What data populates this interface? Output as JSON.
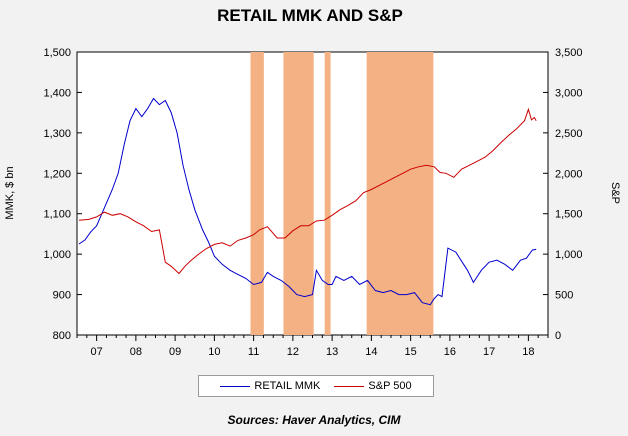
{
  "chart_data": {
    "type": "line",
    "title": "RETAIL MMK AND S&P",
    "ylabel_left": "MMK, $ bn",
    "ylabel_right": "S&P",
    "x_tick_labels": [
      "07",
      "08",
      "09",
      "10",
      "11",
      "12",
      "13",
      "14",
      "15",
      "16",
      "17",
      "18"
    ],
    "xlim": [
      2006.5,
      2018.5
    ],
    "ylim_left": [
      800,
      1500
    ],
    "ylim_right": [
      0,
      3500
    ],
    "left_ticks": [
      "800",
      "900",
      "1,000",
      "1,100",
      "1,200",
      "1,300",
      "1,400",
      "1,500"
    ],
    "right_ticks": [
      "0",
      "500",
      "1,000",
      "1,500",
      "2,000",
      "2,500",
      "3,000",
      "3,500"
    ],
    "shaded_periods": [
      [
        2010.92,
        2011.26
      ],
      [
        2011.76,
        2012.53
      ],
      [
        2012.81,
        2012.96
      ],
      [
        2013.88,
        2015.58
      ]
    ],
    "shade_color": "#f4b183",
    "series": [
      {
        "name": "RETAIL MMK",
        "axis": "left",
        "color": "#0000cc",
        "x": [
          2006.55,
          2006.7,
          2006.85,
          2007.0,
          2007.2,
          2007.4,
          2007.55,
          2007.7,
          2007.85,
          2008.0,
          2008.15,
          2008.3,
          2008.45,
          2008.6,
          2008.75,
          2008.9,
          2009.05,
          2009.2,
          2009.35,
          2009.5,
          2009.7,
          2009.85,
          2010.0,
          2010.2,
          2010.4,
          2010.6,
          2010.8,
          2011.0,
          2011.2,
          2011.35,
          2011.5,
          2011.7,
          2011.9,
          2012.1,
          2012.3,
          2012.5,
          2012.6,
          2012.75,
          2012.9,
          2013.0,
          2013.1,
          2013.3,
          2013.5,
          2013.7,
          2013.9,
          2014.1,
          2014.3,
          2014.5,
          2014.7,
          2014.9,
          2015.1,
          2015.3,
          2015.5,
          2015.6,
          2015.7,
          2015.8,
          2015.95,
          2016.15,
          2016.35,
          2016.45,
          2016.6,
          2016.8,
          2017.0,
          2017.2,
          2017.4,
          2017.6,
          2017.8,
          2017.95,
          2018.1,
          2018.2
        ],
        "y": [
          1025,
          1035,
          1055,
          1070,
          1115,
          1160,
          1200,
          1270,
          1330,
          1360,
          1340,
          1360,
          1385,
          1370,
          1380,
          1350,
          1300,
          1220,
          1160,
          1110,
          1060,
          1030,
          995,
          975,
          960,
          950,
          940,
          925,
          930,
          955,
          945,
          935,
          920,
          900,
          895,
          900,
          960,
          935,
          925,
          925,
          945,
          935,
          945,
          925,
          935,
          910,
          905,
          910,
          900,
          900,
          905,
          880,
          875,
          890,
          900,
          895,
          1015,
          1005,
          975,
          960,
          930,
          960,
          980,
          985,
          975,
          960,
          985,
          990,
          1010,
          1012
        ]
      },
      {
        "name": "S&P 500",
        "axis": "right",
        "color": "#cc0000",
        "x": [
          2006.55,
          2006.8,
          2007.0,
          2007.2,
          2007.4,
          2007.6,
          2007.8,
          2008.0,
          2008.2,
          2008.4,
          2008.6,
          2008.75,
          2008.9,
          2009.1,
          2009.25,
          2009.4,
          2009.6,
          2009.8,
          2010.0,
          2010.2,
          2010.4,
          2010.6,
          2010.8,
          2011.0,
          2011.15,
          2011.35,
          2011.6,
          2011.8,
          2012.0,
          2012.2,
          2012.4,
          2012.6,
          2012.8,
          2013.0,
          2013.2,
          2013.4,
          2013.6,
          2013.8,
          2014.0,
          2014.2,
          2014.4,
          2014.6,
          2014.8,
          2015.0,
          2015.2,
          2015.4,
          2015.6,
          2015.75,
          2015.9,
          2016.1,
          2016.3,
          2016.5,
          2016.7,
          2016.9,
          2017.1,
          2017.3,
          2017.5,
          2017.7,
          2017.9,
          2018.0,
          2018.08,
          2018.15,
          2018.2
        ],
        "y": [
          1420,
          1430,
          1460,
          1520,
          1480,
          1500,
          1460,
          1400,
          1350,
          1280,
          1300,
          900,
          850,
          760,
          850,
          920,
          1000,
          1070,
          1120,
          1140,
          1100,
          1170,
          1200,
          1240,
          1300,
          1340,
          1200,
          1200,
          1290,
          1350,
          1350,
          1410,
          1420,
          1480,
          1550,
          1600,
          1660,
          1760,
          1800,
          1850,
          1900,
          1950,
          2000,
          2050,
          2080,
          2100,
          2080,
          2010,
          2000,
          1950,
          2050,
          2100,
          2150,
          2200,
          2280,
          2380,
          2470,
          2550,
          2650,
          2790,
          2660,
          2690,
          2650
        ]
      }
    ]
  },
  "legend": {
    "item1": "RETAIL MMK",
    "item2": "S&P 500"
  },
  "source_text": "Sources:  Haver Analytics, CIM"
}
